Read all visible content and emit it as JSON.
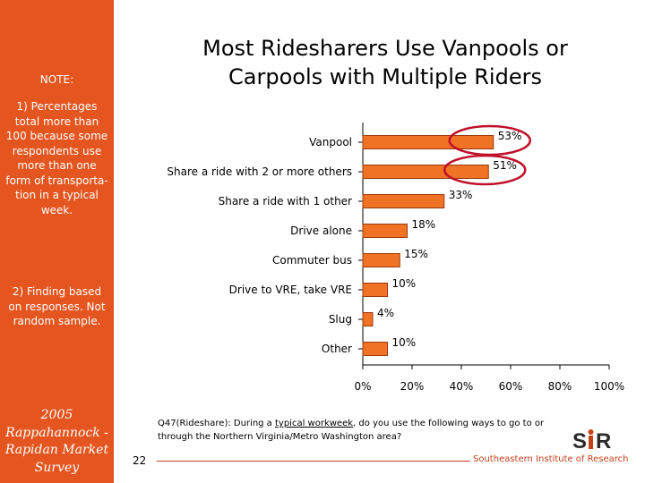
{
  "sidebar": {
    "note_heading": "NOTE:",
    "note_1": "1) Percentages total more than 100 because some respondents use more than one form of transporta-tion in a typical week.",
    "note_2": "2) Finding based on responses. Not random sample.",
    "survey_name": "2005 Rappahannock - Rapidan Market Survey"
  },
  "slide": {
    "title_line1": "Most Ridesharers Use Vanpools  or",
    "title_line2": "Carpools with Multiple Riders",
    "footnote_prefix": "Q47(Rideshare): During a ",
    "footnote_underlined": "typical workweek",
    "footnote_suffix": ", do you use the following ways to go to or through the Northern Virginia/Metro Washington area?",
    "page_number": "22",
    "organization": "Southeastern Institute of Research",
    "logo_text": "SIR"
  },
  "chart_data": {
    "type": "bar",
    "orientation": "horizontal",
    "categories": [
      "Vanpool",
      "Share a ride with 2 or more others",
      "Share a ride with 1 other",
      "Drive alone",
      "Commuter bus",
      "Drive to VRE, take VRE",
      "Slug",
      "Other"
    ],
    "values": [
      53,
      51,
      33,
      18,
      15,
      10,
      4,
      10
    ],
    "value_labels": [
      "53%",
      "51%",
      "33%",
      "18%",
      "15%",
      "10%",
      "4%",
      "10%"
    ],
    "xlim": [
      0,
      100
    ],
    "xticks": [
      0,
      20,
      40,
      60,
      80,
      100
    ],
    "xtick_labels": [
      "0%",
      "20%",
      "40%",
      "60%",
      "80%",
      "100%"
    ],
    "highlighted": [
      "Vanpool",
      "Share a ride with 2 or more others"
    ],
    "bar_color": "#f07224",
    "bar_edge_color": "#9c3a10",
    "highlight_color": "#c0102a",
    "grid": false,
    "legend": "none"
  }
}
